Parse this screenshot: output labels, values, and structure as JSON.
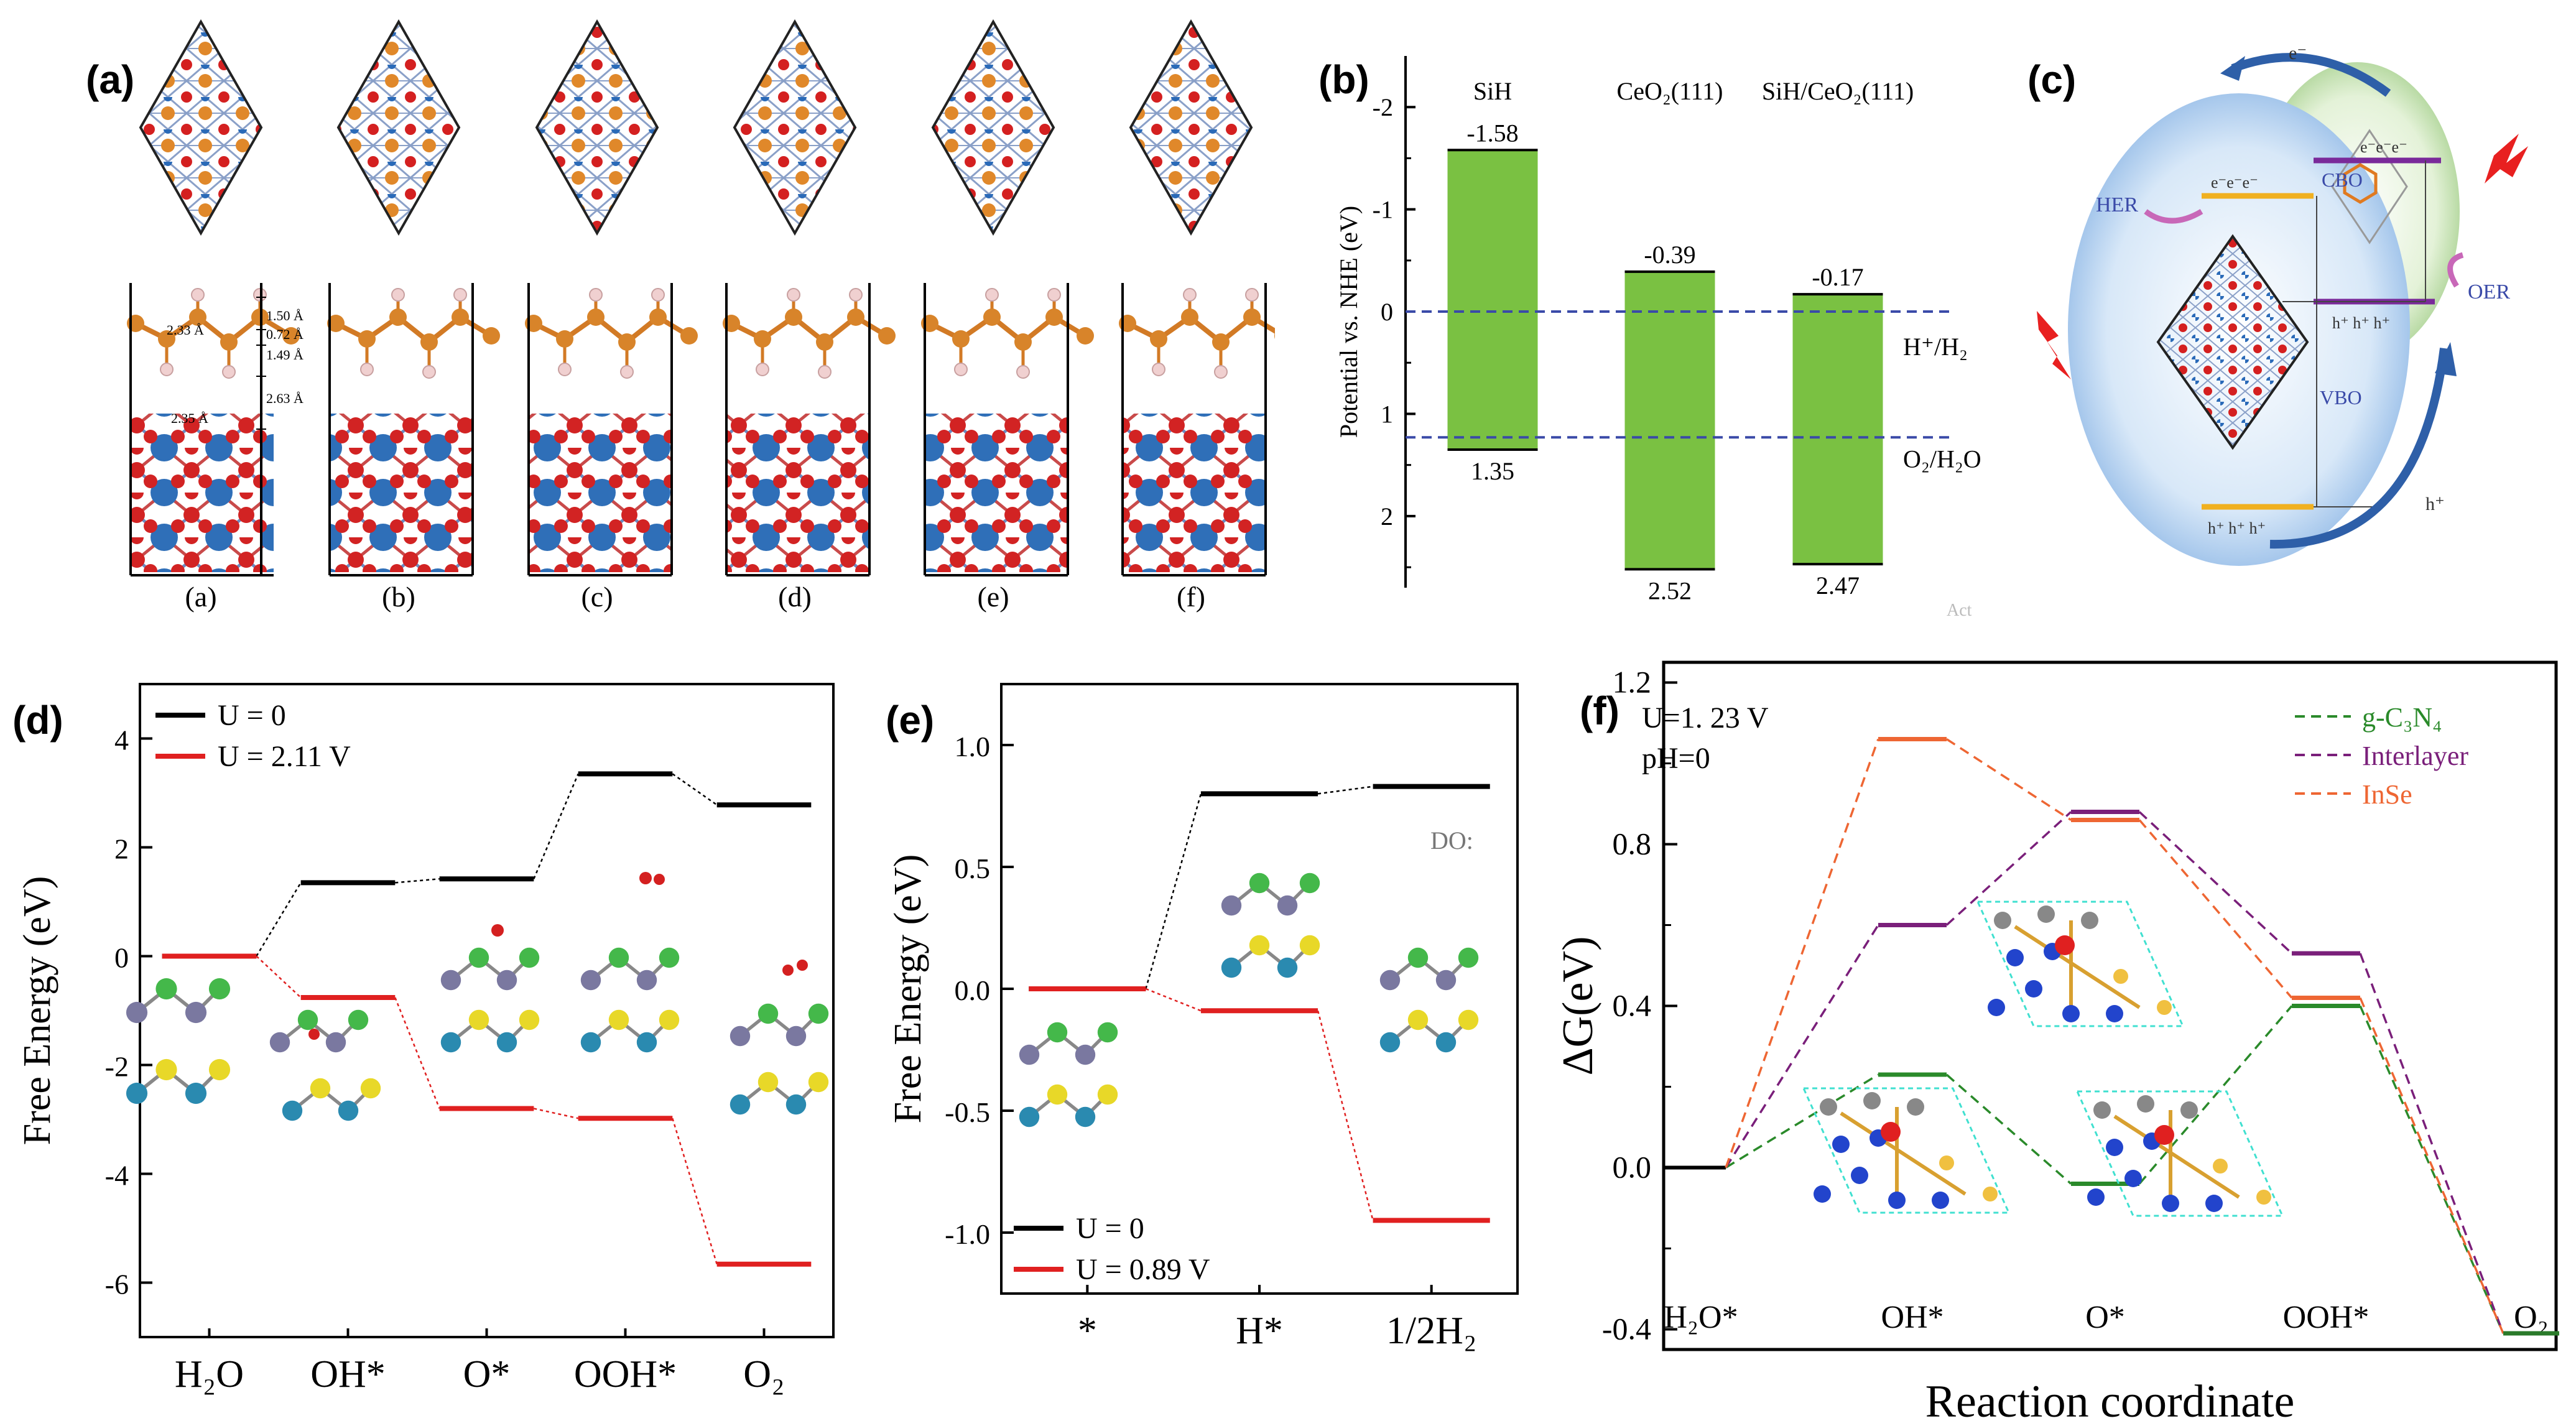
{
  "panels": {
    "a": {
      "label": "(a)",
      "sublabels": [
        "(a)",
        "(b)",
        "(c)",
        "(d)",
        "(e)",
        "(f)"
      ],
      "dims": [
        "1.50 Å",
        "0.72 Å",
        "1.49 Å",
        "2.63 Å"
      ],
      "bond_labels": [
        "2.33 Å",
        "2.35 Å"
      ]
    },
    "b": {
      "label": "(b)",
      "columns": [
        "SiH",
        "CeO₂(111)",
        "SiH/CeO₂(111)"
      ],
      "top_values": [
        "-1.58",
        "-0.39",
        "-0.17"
      ],
      "bottom_values": [
        "1.35",
        "2.52",
        "2.47"
      ],
      "ref_h": "H⁺/H₂",
      "ref_o": "O₂/H₂O",
      "watermark": "Act"
    },
    "c": {
      "label": "(c)",
      "e_top": "e⁻",
      "h_bottom": "h⁺",
      "her": "HER",
      "oer": "OER",
      "cbo": "CBO",
      "vbo": "VBO",
      "eee": "e⁻e⁻e⁻",
      "hhh": "h⁺ h⁺ h⁺"
    },
    "f": {
      "label": "(f)",
      "cond1": "U=1. 23 V",
      "cond2": "pH=0",
      "xlabel": "Reaction coordinate",
      "ylabel": "ΔG(eV)"
    }
  },
  "chart_data": [
    {
      "id": "b",
      "type": "bar",
      "ylabel": "Potential vs. NHE (eV)",
      "yticks": [
        "-2",
        "-1",
        "0",
        "1",
        "2"
      ],
      "ylim": [
        -2.5,
        2.7
      ],
      "series": [
        {
          "name": "SiH",
          "top": -1.58,
          "bottom": 1.35
        },
        {
          "name": "CeO2(111)",
          "top": -0.39,
          "bottom": 2.52
        },
        {
          "name": "SiH/CeO2(111)",
          "top": -0.17,
          "bottom": 2.47
        }
      ],
      "reference_lines": [
        {
          "name": "H+/H2",
          "value": 0
        },
        {
          "name": "O2/H2O",
          "value": 1.23
        }
      ]
    },
    {
      "id": "d",
      "type": "line",
      "ylabel": "Free Energy (eV)",
      "yticks": [
        "4",
        "2",
        "0",
        "-2",
        "-4",
        "-6"
      ],
      "ylim": [
        -7,
        5
      ],
      "categories": [
        "H₂O",
        "OH*",
        "O*",
        "OOH*",
        "O₂"
      ],
      "series": [
        {
          "name": "U = 0",
          "color": "#000000",
          "values": [
            0,
            1.35,
            1.42,
            3.35,
            2.78
          ]
        },
        {
          "name": "U = 2.11 V",
          "color": "#e02020",
          "values": [
            0,
            -0.76,
            -2.8,
            -2.98,
            -5.66
          ]
        }
      ]
    },
    {
      "id": "e",
      "type": "line",
      "ylabel": "Free Energy (eV)",
      "yticks": [
        "1.0",
        "0.5",
        "0.0",
        "-0.5",
        "-1.0"
      ],
      "ylim": [
        -1.25,
        1.25
      ],
      "categories": [
        "*",
        "H*",
        "1/2H₂"
      ],
      "series": [
        {
          "name": "U = 0",
          "color": "#000000",
          "values": [
            0,
            0.8,
            0.83
          ]
        },
        {
          "name": "U = 0.89 V",
          "color": "#e02020",
          "values": [
            0,
            -0.09,
            -0.95
          ]
        }
      ],
      "annotation": "DO:"
    },
    {
      "id": "f",
      "type": "line",
      "ylabel": "ΔG(eV)",
      "xlabel": "Reaction coordinate",
      "yticks": [
        "1.2",
        "0.8",
        "0.4",
        "0.0",
        "-0.4"
      ],
      "ylim": [
        -0.45,
        1.25
      ],
      "categories": [
        "H₂O*",
        "OH*",
        "O*",
        "OOH*",
        "O₂"
      ],
      "series": [
        {
          "name": "g-C₃N₄",
          "color": "#2a8a2a",
          "values": [
            0,
            0.23,
            -0.04,
            0.4,
            -0.41
          ]
        },
        {
          "name": "Interlayer",
          "color": "#7a1f7a",
          "values": [
            0,
            0.6,
            0.88,
            0.53,
            -0.41
          ]
        },
        {
          "name": "InSe",
          "color": "#ee6633",
          "values": [
            0,
            1.06,
            0.86,
            0.42,
            -0.41
          ]
        }
      ]
    }
  ]
}
